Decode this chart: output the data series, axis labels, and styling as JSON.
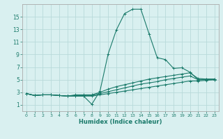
{
  "xlabel": "Humidex (Indice chaleur)",
  "bg_color": "#d9f0f0",
  "grid_color": "#b8dada",
  "line_color": "#1a7a6a",
  "x_values": [
    0,
    1,
    2,
    3,
    4,
    5,
    6,
    7,
    8,
    9,
    10,
    11,
    12,
    13,
    14,
    15,
    16,
    17,
    18,
    19,
    20,
    21,
    22,
    23
  ],
  "line1": [
    2.8,
    2.5,
    2.6,
    2.6,
    2.5,
    2.4,
    2.4,
    2.4,
    1.1,
    3.2,
    9.1,
    12.9,
    15.5,
    16.2,
    16.2,
    12.3,
    8.5,
    8.2,
    6.8,
    6.9,
    6.2,
    5.0,
    5.1,
    5.1
  ],
  "line2": [
    2.8,
    2.5,
    2.6,
    2.6,
    2.5,
    2.4,
    2.6,
    2.6,
    2.6,
    3.0,
    3.5,
    3.9,
    4.2,
    4.5,
    4.8,
    5.1,
    5.3,
    5.5,
    5.7,
    5.9,
    6.1,
    5.2,
    5.1,
    5.1
  ],
  "line3": [
    2.8,
    2.5,
    2.6,
    2.6,
    2.5,
    2.4,
    2.5,
    2.5,
    2.5,
    2.8,
    3.1,
    3.4,
    3.7,
    4.0,
    4.3,
    4.5,
    4.7,
    5.0,
    5.2,
    5.4,
    5.6,
    5.0,
    5.0,
    5.0
  ],
  "line4": [
    2.8,
    2.5,
    2.6,
    2.6,
    2.5,
    2.4,
    2.4,
    2.4,
    2.4,
    2.6,
    2.8,
    3.0,
    3.2,
    3.4,
    3.6,
    3.8,
    4.0,
    4.2,
    4.4,
    4.6,
    4.8,
    4.8,
    4.9,
    5.0
  ],
  "ylim": [
    0,
    17
  ],
  "yticks": [
    1,
    3,
    5,
    7,
    9,
    11,
    13,
    15
  ],
  "xlim": [
    -0.5,
    23.5
  ],
  "xtick_fontsize": 4.5,
  "ytick_fontsize": 5.5,
  "xlabel_fontsize": 6.0
}
